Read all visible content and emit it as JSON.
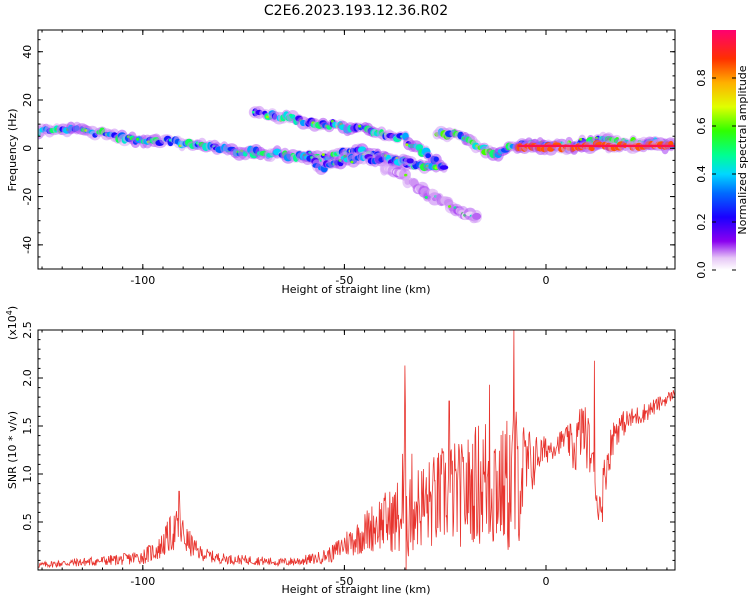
{
  "title": "C2E6.2023.193.12.36.R02",
  "chart_data": [
    {
      "type": "heatmap",
      "title": "C2E6.2023.193.12.36.R02",
      "xlabel": "Height of straight line (km)",
      "ylabel": "Frequency (Hz)",
      "xlim": [
        -126,
        32
      ],
      "ylim": [
        -50,
        49
      ],
      "x_ticks": [
        -100,
        -50,
        0
      ],
      "x_tick_labels": [
        "-100",
        "-50",
        "0"
      ],
      "y_ticks": [
        40,
        20,
        0,
        -20,
        -40
      ],
      "y_tick_labels": [
        "40",
        "20",
        "0",
        "-20",
        "-40"
      ],
      "colorbar": {
        "label": "Normalized spectral amplitude",
        "range": [
          0.0,
          1.0
        ],
        "ticks": [
          0.0,
          0.2,
          0.4,
          0.6,
          0.8
        ],
        "tick_labels": [
          "0.0",
          "0.2",
          "0.4",
          "0.6",
          "0.8"
        ]
      },
      "tracks": [
        {
          "name": "main-trace",
          "points": [
            [
              -126,
              7
            ],
            [
              -118,
              8
            ],
            [
              -110,
              6
            ],
            [
              -100,
              3
            ],
            [
              -92,
              3
            ],
            [
              -85,
              1
            ],
            [
              -78,
              -1
            ],
            [
              -70,
              -2
            ],
            [
              -62,
              -3
            ],
            [
              -55,
              -4
            ],
            [
              -48,
              -1
            ],
            [
              -42,
              -3
            ],
            [
              -37,
              -5
            ],
            [
              -32,
              -7
            ],
            [
              -28,
              -8
            ],
            [
              -25,
              -7
            ]
          ],
          "amp": 0.38
        },
        {
          "name": "upper-branch",
          "points": [
            [
              -72,
              14
            ],
            [
              -68,
              14
            ],
            [
              -62,
              12
            ],
            [
              -58,
              11
            ],
            [
              -52,
              9
            ],
            [
              -45,
              8
            ],
            [
              -40,
              6
            ],
            [
              -35,
              4
            ],
            [
              -30,
              -2
            ],
            [
              -26,
              -6
            ],
            [
              -25,
              -10
            ]
          ],
          "amp": 0.35
        },
        {
          "name": "lower-branch",
          "points": [
            [
              -60,
              -3
            ],
            [
              -55,
              -8
            ],
            [
              -50,
              -5
            ],
            [
              -45,
              -4
            ],
            [
              -38,
              -5
            ],
            [
              -33,
              -5
            ]
          ],
          "amp": 0.3
        },
        {
          "name": "descending-branch",
          "points": [
            [
              -40,
              -8
            ],
            [
              -35,
              -12
            ],
            [
              -30,
              -18
            ],
            [
              -25,
              -22
            ],
            [
              -20,
              -27
            ],
            [
              -16,
              -30
            ]
          ],
          "amp": 0.06
        },
        {
          "name": "right-trace",
          "points": [
            [
              -27,
              6
            ],
            [
              -22,
              5
            ],
            [
              -18,
              2
            ],
            [
              -13,
              -3
            ],
            [
              -10,
              -1
            ],
            [
              -6,
              2
            ],
            [
              0,
              1
            ],
            [
              5,
              1
            ],
            [
              10,
              2
            ],
            [
              14,
              3
            ],
            [
              20,
              2
            ],
            [
              26,
              2
            ],
            [
              32,
              2
            ]
          ],
          "amp": 0.42
        },
        {
          "name": "stable-tone",
          "points": [
            [
              -7,
              1
            ],
            [
              -2,
              0.5
            ],
            [
              3,
              0.5
            ],
            [
              8,
              1
            ],
            [
              18,
              1
            ],
            [
              26,
              1
            ],
            [
              32,
              1
            ]
          ],
          "amp": 0.85
        }
      ]
    },
    {
      "type": "line",
      "xlabel": "Height of straight line (km)",
      "ylabel": "SNR (10 * v/v)",
      "y_scale_label": "(x10",
      "y_scale_exponent": "4",
      "xlim": [
        -126,
        32
      ],
      "ylim": [
        0,
        2.5
      ],
      "x_ticks": [
        -100,
        -50,
        0
      ],
      "x_tick_labels": [
        "-100",
        "-50",
        "0"
      ],
      "y_ticks": [
        0.5,
        1.0,
        1.5,
        2.0,
        2.5
      ],
      "y_tick_labels": [
        "0.5",
        "1.0",
        "1.5",
        "2.0",
        "2.5"
      ],
      "series": [
        {
          "name": "SNR",
          "color": "#e8342e",
          "x": [
            -126,
            -120,
            -112,
            -105,
            -100,
            -96,
            -93,
            -91,
            -89,
            -86,
            -82,
            -78,
            -72,
            -66,
            -62,
            -57,
            -53,
            -50,
            -47,
            -44,
            -41,
            -38,
            -36,
            -35,
            -34,
            -32,
            -28,
            -24,
            -21,
            -18,
            -16,
            -13,
            -11,
            -9,
            -8,
            -6,
            -4,
            -2,
            0,
            3,
            5,
            7,
            9,
            11,
            12,
            13,
            15,
            17,
            20,
            25,
            28,
            32
          ],
          "baseline": [
            0.05,
            0.07,
            0.09,
            0.11,
            0.14,
            0.22,
            0.38,
            0.44,
            0.3,
            0.18,
            0.13,
            0.11,
            0.1,
            0.08,
            0.09,
            0.12,
            0.17,
            0.27,
            0.33,
            0.42,
            0.5,
            0.52,
            0.55,
            0.75,
            0.7,
            0.66,
            0.7,
            0.82,
            0.78,
            0.88,
            0.92,
            0.95,
            0.85,
            0.9,
            0.9,
            1.0,
            1.08,
            1.2,
            1.25,
            1.32,
            1.38,
            1.25,
            1.5,
            1.25,
            1.0,
            0.6,
            1.1,
            1.45,
            1.55,
            1.65,
            1.73,
            1.84
          ],
          "amplitude": [
            0.03,
            0.04,
            0.05,
            0.06,
            0.08,
            0.12,
            0.2,
            0.22,
            0.15,
            0.08,
            0.06,
            0.05,
            0.05,
            0.04,
            0.05,
            0.06,
            0.09,
            0.14,
            0.18,
            0.24,
            0.3,
            0.34,
            0.5,
            1.0,
            0.6,
            0.45,
            0.5,
            0.55,
            0.55,
            0.6,
            0.7,
            0.8,
            0.6,
            0.8,
            0.9,
            0.6,
            0.4,
            0.2,
            0.15,
            0.12,
            0.12,
            0.3,
            0.3,
            0.3,
            0.15,
            0.15,
            0.25,
            0.18,
            0.12,
            0.1,
            0.08,
            0.05
          ],
          "peaks": [
            [
              -91,
              0.82
            ],
            [
              -35,
              2.13
            ],
            [
              -24,
              1.76
            ],
            [
              -14,
              1.93
            ],
            [
              -8,
              2.5
            ],
            [
              12,
              2.18
            ],
            [
              14,
              0.5
            ]
          ],
          "samples": 1100
        }
      ]
    }
  ]
}
